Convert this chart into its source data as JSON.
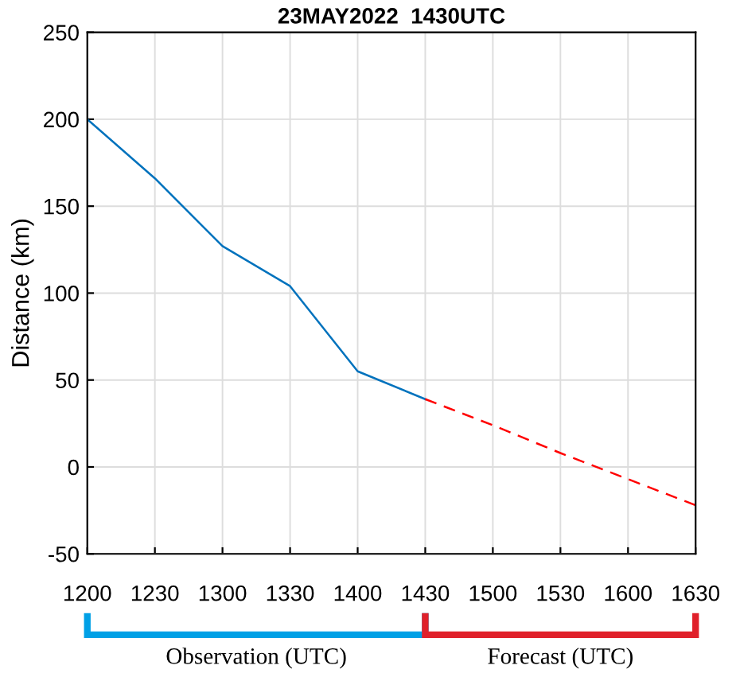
{
  "chart_data": {
    "type": "line",
    "title": "23MAY2022  1430UTC",
    "ylabel": "Distance (km)",
    "categories": [
      "1200",
      "1230",
      "1300",
      "1330",
      "1400",
      "1430",
      "1500",
      "1530",
      "1600",
      "1630"
    ],
    "series": [
      {
        "color": "#0072bd",
        "values": [
          200,
          166,
          127,
          104,
          55,
          39,
          null,
          null,
          null,
          null
        ],
        "line_style": "solid"
      },
      {
        "color": "#ff0000",
        "values": [
          null,
          null,
          null,
          null,
          null,
          39,
          24,
          8,
          -7,
          -22
        ],
        "line_style": "dashed"
      }
    ],
    "ylim": [
      -50,
      250
    ],
    "yticks": [
      -50,
      0,
      50,
      100,
      150,
      200,
      250
    ],
    "grid": true,
    "annotations": [
      "Observation (UTC)",
      "Forecast (UTC)"
    ]
  }
}
